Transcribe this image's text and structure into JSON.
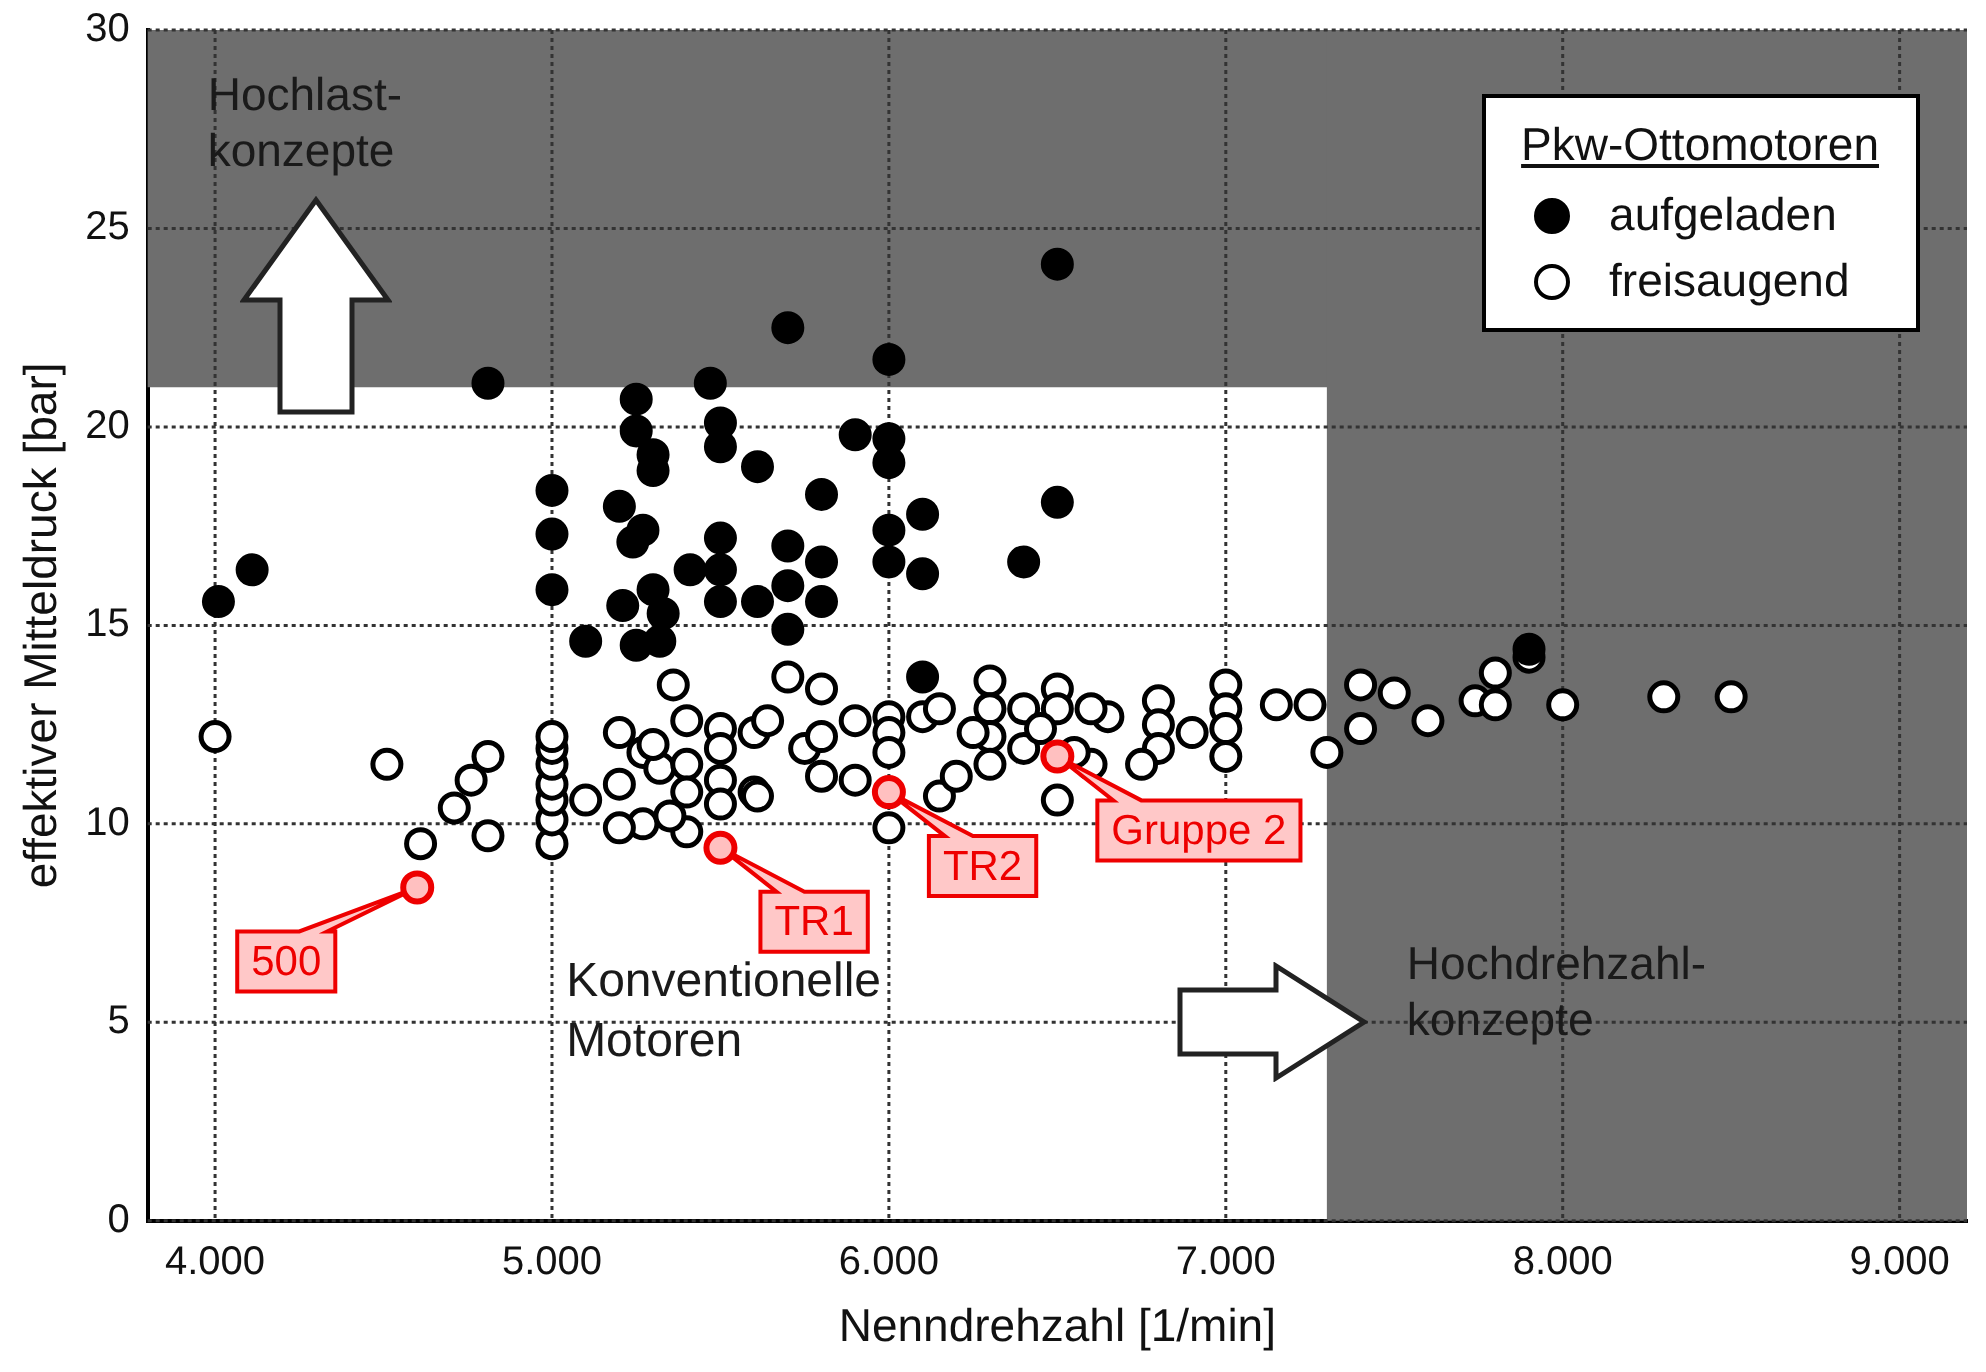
{
  "chart_data": {
    "type": "scatter",
    "xlabel": "Nenndrehzahl [1/min]",
    "ylabel": "effektiver Mitteldruck [bar]",
    "legend_title": "Pkw-Ottomotoren",
    "legend": "top right",
    "grid": true,
    "marker": "circle",
    "xlim": [
      3800,
      9200
    ],
    "xticks": [
      {
        "value": 4000,
        "label": "4.000"
      },
      {
        "value": 5000,
        "label": "5.000"
      },
      {
        "value": 6000,
        "label": "6.000"
      },
      {
        "value": 7000,
        "label": "7.000"
      },
      {
        "value": 8000,
        "label": "8.000"
      },
      {
        "value": 9000,
        "label": "9.000"
      }
    ],
    "ylim": [
      0,
      30
    ],
    "yticks": [
      0,
      5,
      10,
      15,
      20,
      25,
      30
    ],
    "bands": [
      {
        "axis": "y",
        "from": 21,
        "to": 30,
        "label": "Hochlast-\nkonzepte",
        "color": "#6e6e6e"
      },
      {
        "axis": "x",
        "from": 7300,
        "to": 9200,
        "label": "Hochdrehzahl-\nkonzepte",
        "color": "#6e6e6e"
      }
    ],
    "annotations": [
      "Konventionelle\nMotoren",
      {
        "text": "500",
        "x": 4600,
        "y": 8.4
      },
      {
        "text": "TR1",
        "x": 5500,
        "y": 9.4
      },
      {
        "text": "TR2",
        "x": 6000,
        "y": 10.8
      },
      {
        "text": "Gruppe 2",
        "x": 6500,
        "y": 11.7
      }
    ],
    "series": [
      {
        "name": "aufgeladen",
        "color": "#000000",
        "x": [
          4010,
          4110,
          4810,
          5000,
          5000,
          5000,
          5100,
          5250,
          5250,
          5300,
          5300,
          5200,
          5270,
          5240,
          5210,
          5330,
          5250,
          5320,
          5410,
          5470,
          5500,
          5500,
          5610,
          5500,
          5500,
          5500,
          5610,
          5700,
          5700,
          5700,
          5700,
          5800,
          5800,
          5800,
          5900,
          6000,
          6000,
          6000,
          6000,
          6000,
          6100,
          6100,
          6400,
          6500,
          6100,
          6500,
          5300,
          7900
        ],
        "values": [
          15.6,
          16.4,
          21.1,
          18.4,
          17.3,
          15.9,
          14.6,
          20.7,
          19.9,
          19.3,
          18.9,
          18.0,
          17.4,
          17.1,
          15.5,
          15.3,
          14.5,
          14.6,
          16.4,
          21.1,
          20.1,
          19.5,
          19.0,
          17.2,
          16.4,
          15.6,
          15.6,
          22.5,
          17.0,
          16.0,
          14.9,
          18.3,
          16.6,
          15.6,
          19.8,
          21.7,
          19.7,
          19.1,
          17.4,
          16.6,
          17.8,
          16.3,
          16.6,
          18.1,
          13.7,
          24.1,
          15.9,
          14.4
        ]
      },
      {
        "name": "freisaugend",
        "color": "#ffffff",
        "x": [
          4000,
          4510,
          4610,
          4710,
          4760,
          4810,
          4810,
          5000,
          5000,
          5000,
          5000,
          5000,
          5000,
          5000,
          5100,
          5200,
          5200,
          5270,
          5270,
          5320,
          5200,
          5360,
          5400,
          5400,
          5400,
          5400,
          5500,
          5500,
          5500,
          5500,
          5600,
          5600,
          5300,
          5350,
          5700,
          5800,
          5640,
          5750,
          5800,
          5800,
          5610,
          5900,
          5900,
          6000,
          6000,
          6000,
          6000,
          6100,
          6150,
          6150,
          6300,
          6300,
          6300,
          6300,
          6400,
          6500,
          6500,
          6500,
          6600,
          6650,
          6800,
          6800,
          6800,
          6750,
          6900,
          7000,
          7000,
          7000,
          7000,
          7150,
          7250,
          7300,
          7400,
          7400,
          7500,
          7600,
          7740,
          7800,
          7800,
          7900,
          8000,
          8300,
          8500,
          6200,
          6250,
          6400,
          6450,
          6550,
          6600
        ],
        "values": [
          12.2,
          11.5,
          9.5,
          10.4,
          11.1,
          11.7,
          9.7,
          9.5,
          10.1,
          10.6,
          11.0,
          11.5,
          11.9,
          12.2,
          10.6,
          12.3,
          11.0,
          11.8,
          10.0,
          11.4,
          9.9,
          13.5,
          12.6,
          11.5,
          10.8,
          9.8,
          12.4,
          11.9,
          11.1,
          10.5,
          12.3,
          10.8,
          12.0,
          10.2,
          13.7,
          13.4,
          12.6,
          11.9,
          12.2,
          11.2,
          10.7,
          12.6,
          11.1,
          12.7,
          12.3,
          11.8,
          9.9,
          12.7,
          10.7,
          12.9,
          13.6,
          12.9,
          12.2,
          11.5,
          12.9,
          13.4,
          12.9,
          10.6,
          11.5,
          12.7,
          13.1,
          12.5,
          11.9,
          11.5,
          12.3,
          13.5,
          12.9,
          12.4,
          11.7,
          13.0,
          13.0,
          11.8,
          13.5,
          12.4,
          13.3,
          12.6,
          13.1,
          13.8,
          13.0,
          14.2,
          13.0,
          13.2,
          13.2,
          11.2,
          12.3,
          11.9,
          12.4,
          11.8,
          12.9
        ]
      }
    ]
  }
}
